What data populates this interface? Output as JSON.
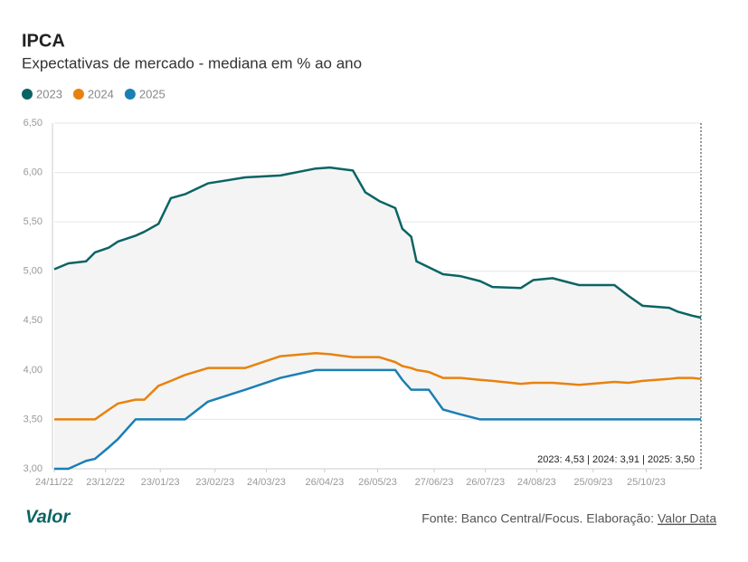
{
  "chart_data": {
    "type": "line",
    "title": "IPCA",
    "subtitle": "Expectativas de mercado - mediana em % ao ano",
    "x": [
      "2022-11-24",
      "2022-12-02",
      "2022-12-12",
      "2022-12-17",
      "2022-12-25",
      "2022-12-30",
      "2023-01-09",
      "2023-01-14",
      "2023-01-22",
      "2023-01-29",
      "2023-02-06",
      "2023-02-19",
      "2023-03-12",
      "2023-04-01",
      "2023-04-21",
      "2023-04-29",
      "2023-05-12",
      "2023-05-19",
      "2023-05-27",
      "2023-06-05",
      "2023-06-09",
      "2023-06-14",
      "2023-06-17",
      "2023-06-24",
      "2023-07-02",
      "2023-07-12",
      "2023-07-23",
      "2023-07-30",
      "2023-08-15",
      "2023-08-22",
      "2023-09-02",
      "2023-09-17",
      "2023-10-07",
      "2023-10-15",
      "2023-10-23",
      "2023-11-07",
      "2023-11-12",
      "2023-11-20",
      "2023-11-25"
    ],
    "series": [
      {
        "name": "2023",
        "color": "#0b6464",
        "values": [
          5.02,
          5.08,
          5.1,
          5.19,
          5.24,
          5.3,
          5.36,
          5.4,
          5.48,
          5.74,
          5.78,
          5.89,
          5.95,
          5.97,
          6.04,
          6.05,
          6.02,
          5.8,
          5.71,
          5.64,
          5.43,
          5.35,
          5.1,
          5.04,
          4.97,
          4.95,
          4.9,
          4.84,
          4.83,
          4.91,
          4.93,
          4.86,
          4.86,
          4.75,
          4.65,
          4.63,
          4.59,
          4.55,
          4.53
        ]
      },
      {
        "name": "2024",
        "color": "#e8820e",
        "values": [
          3.5,
          3.5,
          3.5,
          3.5,
          3.6,
          3.66,
          3.7,
          3.7,
          3.84,
          3.89,
          3.95,
          4.02,
          4.02,
          4.14,
          4.17,
          4.16,
          4.13,
          4.13,
          4.13,
          4.08,
          4.04,
          4.02,
          4.0,
          3.98,
          3.92,
          3.92,
          3.9,
          3.89,
          3.86,
          3.87,
          3.87,
          3.85,
          3.88,
          3.87,
          3.89,
          3.91,
          3.92,
          3.92,
          3.91
        ]
      },
      {
        "name": "2025",
        "color": "#1a7fb5",
        "values": [
          3.0,
          3.0,
          3.08,
          3.1,
          3.22,
          3.3,
          3.5,
          3.5,
          3.5,
          3.5,
          3.5,
          3.68,
          3.8,
          3.92,
          4.0,
          4.0,
          4.0,
          4.0,
          4.0,
          4.0,
          3.9,
          3.8,
          3.8,
          3.8,
          3.6,
          3.55,
          3.5,
          3.5,
          3.5,
          3.5,
          3.5,
          3.5,
          3.5,
          3.5,
          3.5,
          3.5,
          3.5,
          3.5,
          3.5
        ]
      }
    ],
    "xlim": [
      "2022-11-24",
      "2023-11-25"
    ],
    "xticks": [
      {
        "value": "2022-11-24",
        "label": "24/11/22"
      },
      {
        "value": "2022-12-23",
        "label": "23/12/22"
      },
      {
        "value": "2023-01-23",
        "label": "23/01/23"
      },
      {
        "value": "2023-02-23",
        "label": "23/02/23"
      },
      {
        "value": "2023-03-24",
        "label": "24/03/23"
      },
      {
        "value": "2023-04-26",
        "label": "26/04/23"
      },
      {
        "value": "2023-05-26",
        "label": "26/05/23"
      },
      {
        "value": "2023-06-27",
        "label": "27/06/23"
      },
      {
        "value": "2023-07-26",
        "label": "26/07/23"
      },
      {
        "value": "2023-08-24",
        "label": "24/08/23"
      },
      {
        "value": "2023-09-25",
        "label": "25/09/23"
      },
      {
        "value": "2023-10-25",
        "label": "25/10/23"
      }
    ],
    "ylim": [
      3,
      6.5
    ],
    "yticks": [
      {
        "value": 3,
        "label": "3,00"
      },
      {
        "value": 3.5,
        "label": "3,50"
      },
      {
        "value": 4,
        "label": "4,00"
      },
      {
        "value": 4.5,
        "label": "4,50"
      },
      {
        "value": 5,
        "label": "5,00"
      },
      {
        "value": 5.5,
        "label": "5,50"
      },
      {
        "value": 6,
        "label": "6,00"
      },
      {
        "value": 6.5,
        "label": "6,50"
      }
    ],
    "grid": true,
    "annotation": "2023: 4,53 | 2024: 3,91 | 2025: 3,50",
    "source": "Fonte: Banco Central/Focus. Elaboração:",
    "source_link": "Valor Data",
    "logo": "Valor"
  }
}
